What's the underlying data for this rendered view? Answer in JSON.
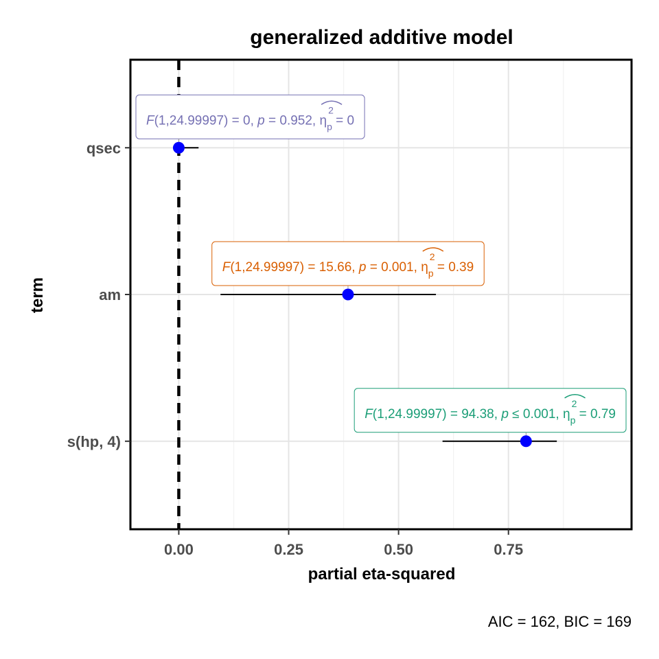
{
  "chart_data": {
    "type": "scatter",
    "title": "generalized additive model",
    "xlabel": "partial eta-squared",
    "ylabel": "term",
    "caption": "AIC = 162, BIC = 169",
    "xlim": [
      -0.11,
      1.03
    ],
    "x_ticks": [
      0.0,
      0.25,
      0.5,
      0.75
    ],
    "x_tick_labels": [
      "0.00",
      "0.25",
      "0.50",
      "0.75"
    ],
    "categories": [
      "qsec",
      "am",
      "s(hp, 4)"
    ],
    "reference_line_x": 0,
    "grid": true,
    "points": [
      {
        "term": "qsec",
        "estimate": 0.0,
        "conf_low": 0.0,
        "conf_high": 0.045,
        "label": {
          "F": "1,24.99997",
          "F_value": "0",
          "p": "0.952",
          "p_op": "=",
          "eta": "0",
          "color": "#7570b3"
        }
      },
      {
        "term": "am",
        "estimate": 0.385,
        "conf_low": 0.095,
        "conf_high": 0.585,
        "label": {
          "F": "1,24.99997",
          "F_value": "15.66",
          "p": "0.001",
          "p_op": "=",
          "eta": "0.39",
          "color": "#d95f02"
        }
      },
      {
        "term": "s(hp, 4)",
        "estimate": 0.79,
        "conf_low": 0.6,
        "conf_high": 0.86,
        "label": {
          "F": "1,24.99997",
          "F_value": "94.38",
          "p": "0.001",
          "p_op": "≤",
          "eta": "0.79",
          "color": "#1b9e77"
        }
      }
    ],
    "point_color": "#0000ff"
  }
}
